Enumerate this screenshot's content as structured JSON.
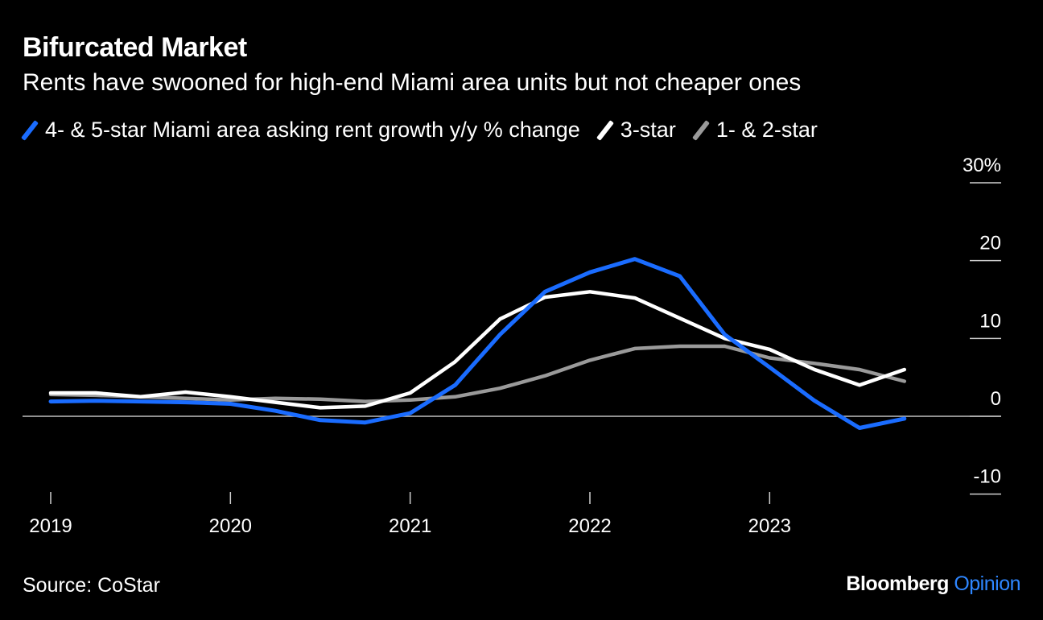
{
  "title": "Bifurcated Market",
  "subtitle": "Rents have swooned for high-end Miami area units but not cheaper ones",
  "legend": {
    "series1": "4- & 5-star Miami area asking rent growth y/y % change",
    "series2": "3-star",
    "series3": "1- & 2-star"
  },
  "source": "Source: CoStar",
  "brand": {
    "name": "Bloomberg",
    "accent": "Opinion"
  },
  "colors": {
    "background": "#000000",
    "series1": "#1a6cff",
    "series2": "#ffffff",
    "series3": "#9a9a9a",
    "zero_line": "#bfbfbf",
    "brand_accent": "#2e86ff"
  },
  "chart_data": {
    "type": "line",
    "ylim": [
      -10,
      30
    ],
    "y_ticks": [
      30,
      20,
      10,
      0,
      -10
    ],
    "y_tick_labels": [
      "30%",
      "20",
      "10",
      "0",
      "-10"
    ],
    "x_ticks": [
      2019,
      2020,
      2021,
      2022,
      2023
    ],
    "x_tick_labels": [
      "2019",
      "2020",
      "2021",
      "2022",
      "2023"
    ],
    "x": [
      2019.0,
      2019.25,
      2019.5,
      2019.75,
      2020.0,
      2020.25,
      2020.5,
      2020.75,
      2021.0,
      2021.25,
      2021.5,
      2021.75,
      2022.0,
      2022.25,
      2022.5,
      2022.75,
      2023.0,
      2023.25,
      2023.5,
      2023.75
    ],
    "grid": false,
    "legend_position": "top",
    "series": [
      {
        "name": "4- & 5-star Miami area asking rent growth y/y % change",
        "values": [
          1.9,
          2.0,
          1.9,
          1.8,
          1.6,
          0.7,
          -0.5,
          -0.8,
          0.4,
          4.0,
          10.5,
          16.0,
          18.5,
          20.2,
          18.0,
          10.5,
          6.3,
          2.0,
          -1.5,
          -0.3
        ]
      },
      {
        "name": "3-star",
        "values": [
          3.0,
          3.0,
          2.5,
          3.1,
          2.5,
          1.8,
          1.1,
          1.3,
          3.0,
          7.0,
          12.5,
          15.3,
          16.0,
          15.2,
          12.6,
          10.0,
          8.6,
          6.0,
          4.0,
          6.0
        ]
      },
      {
        "name": "1- & 2-star",
        "values": [
          2.8,
          2.7,
          2.5,
          2.3,
          2.1,
          2.3,
          2.2,
          1.9,
          2.1,
          2.5,
          3.6,
          5.2,
          7.2,
          8.7,
          9.0,
          9.0,
          7.5,
          6.8,
          6.0,
          4.5
        ]
      }
    ]
  }
}
